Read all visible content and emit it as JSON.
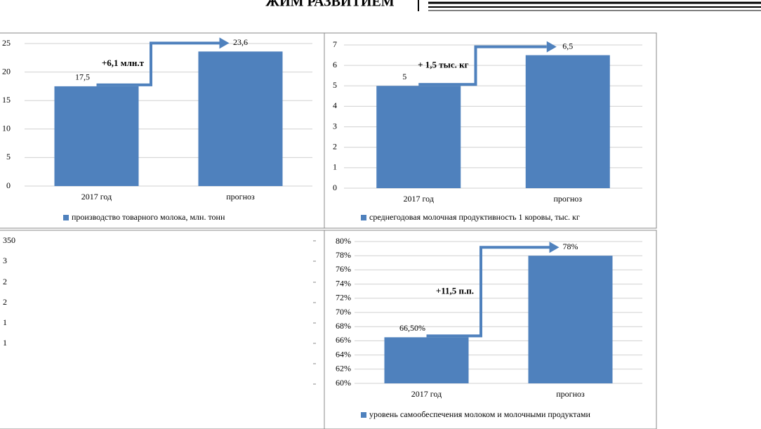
{
  "header": "ЖИМ РАЗВИТИЕМ",
  "chart_data": [
    {
      "type": "bar",
      "categories": [
        "2017 год",
        "прогноз"
      ],
      "series": [
        {
          "name": "производство товарного молока, млн. тонн",
          "color": "#4f81bd",
          "values": [
            17.5,
            23.6
          ],
          "value_labels": [
            "17,5",
            "23,6"
          ]
        }
      ],
      "ylim": [
        0,
        25
      ],
      "yticks": [
        0,
        5,
        10,
        15,
        20,
        25
      ],
      "grid": true,
      "annotation": "+6,1 млн.т"
    },
    {
      "type": "bar",
      "categories": [
        "2017 год",
        "прогноз"
      ],
      "series": [
        {
          "name": "среднегодовая молочная продуктивность 1 коровы, тыс. кг",
          "color": "#4f81bd",
          "values": [
            5,
            6.5
          ],
          "value_labels": [
            "5",
            "6,5"
          ]
        }
      ],
      "ylim": [
        0,
        7
      ],
      "yticks": [
        0,
        1,
        2,
        3,
        4,
        5,
        6,
        7
      ],
      "grid": true,
      "annotation": "+ 1,5 тыс. кг"
    },
    {
      "type": "blank",
      "tick_fragments": [
        "350",
        "3",
        "2",
        "2",
        "1",
        "1"
      ]
    },
    {
      "type": "bar",
      "categories": [
        "2017 год",
        "прогноз"
      ],
      "series": [
        {
          "name": "уровень самообеспечения молоком и молочными продуктами",
          "color": "#4f81bd",
          "values": [
            66.5,
            78
          ],
          "value_labels": [
            "66,50%",
            "78%"
          ]
        }
      ],
      "ylim": [
        60,
        80
      ],
      "yticks": [
        {
          "value": 60,
          "label": "60%"
        },
        {
          "value": 62,
          "label": "62%"
        },
        {
          "value": 64,
          "label": "64%"
        },
        {
          "value": 66,
          "label": "66%"
        },
        {
          "value": 68,
          "label": "68%"
        },
        {
          "value": 70,
          "label": "70%"
        },
        {
          "value": 72,
          "label": "72%"
        },
        {
          "value": 74,
          "label": "74%"
        },
        {
          "value": 76,
          "label": "76%"
        },
        {
          "value": 78,
          "label": "78%"
        },
        {
          "value": 80,
          "label": "80%"
        }
      ],
      "grid": true,
      "annotation": "+11,5 п.п."
    }
  ]
}
